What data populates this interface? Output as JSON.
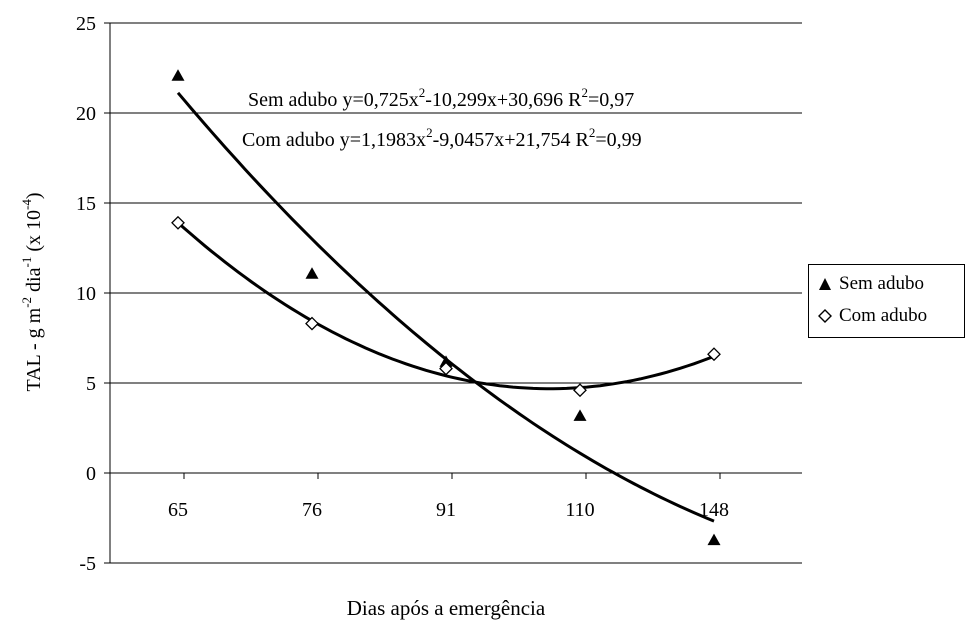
{
  "chart_data": {
    "type": "scatter",
    "title": "",
    "xlabel": "Dias após a emergência",
    "ylabel": {
      "base": "TAL - g m",
      "exp1": "-2",
      "mid": " dia",
      "exp2": "-1",
      "pre": " (x 10",
      "exp3": "-4",
      "post": ")"
    },
    "categories": [
      "65",
      "76",
      "91",
      "110",
      "148"
    ],
    "ylim": [
      -5,
      25
    ],
    "yticks": [
      "-5",
      "0",
      "5",
      "10",
      "15",
      "20",
      "25"
    ],
    "grid": true,
    "legend_position": "right",
    "series": [
      {
        "name": "Sem adubo",
        "marker": "filled-triangle",
        "values": [
          22.1,
          11.1,
          6.2,
          3.2,
          -3.7
        ],
        "fit": {
          "a": 0.725,
          "b": -10.299,
          "c": 30.696
        },
        "equation": {
          "label": "Sem adubo",
          "p1": "y=0,725x",
          "e1": "2",
          "p2": "-10,299x+30,696  R",
          "e2": "2",
          "p3": "=0,97"
        }
      },
      {
        "name": "Com adubo",
        "marker": "open-diamond",
        "values": [
          13.9,
          8.3,
          5.8,
          4.6,
          6.6
        ],
        "fit": {
          "a": 1.1983,
          "b": -9.0457,
          "c": 21.754
        },
        "equation": {
          "label": "Com adubo",
          "p1": "y=1,1983x",
          "e1": "2",
          "p2": "-9,0457x+21,754  R",
          "e2": "2",
          "p3": "=0,99"
        }
      }
    ]
  }
}
